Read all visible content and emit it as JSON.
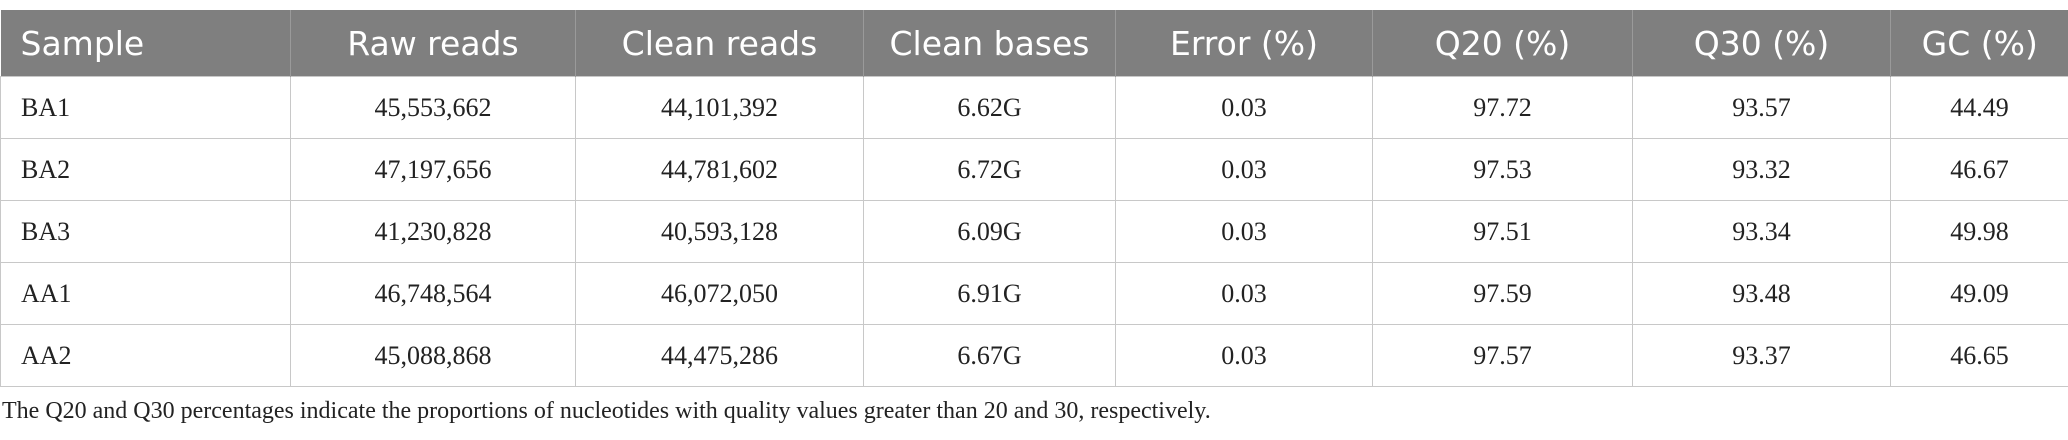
{
  "table": {
    "header": [
      "Sample",
      "Raw reads",
      "Clean reads",
      "Clean bases",
      "Error (%)",
      "Q20 (%)",
      "Q30 (%)",
      "GC (%)"
    ],
    "rows": [
      [
        "BA1",
        "45,553,662",
        "44,101,392",
        "6.62G",
        "0.03",
        "97.72",
        "93.57",
        "44.49"
      ],
      [
        "BA2",
        "47,197,656",
        "44,781,602",
        "6.72G",
        "0.03",
        "97.53",
        "93.32",
        "46.67"
      ],
      [
        "BA3",
        "41,230,828",
        "40,593,128",
        "6.09G",
        "0.03",
        "97.51",
        "93.34",
        "49.98"
      ],
      [
        "AA1",
        "46,748,564",
        "46,072,050",
        "6.91G",
        "0.03",
        "97.59",
        "93.48",
        "49.09"
      ],
      [
        "AA2",
        "45,088,868",
        "44,475,286",
        "6.67G",
        "0.03",
        "97.57",
        "93.37",
        "46.65"
      ]
    ]
  },
  "footnote": "The Q20 and Q30 percentages indicate the proportions of nucleotides with quality values greater than 20 and 30, respectively."
}
